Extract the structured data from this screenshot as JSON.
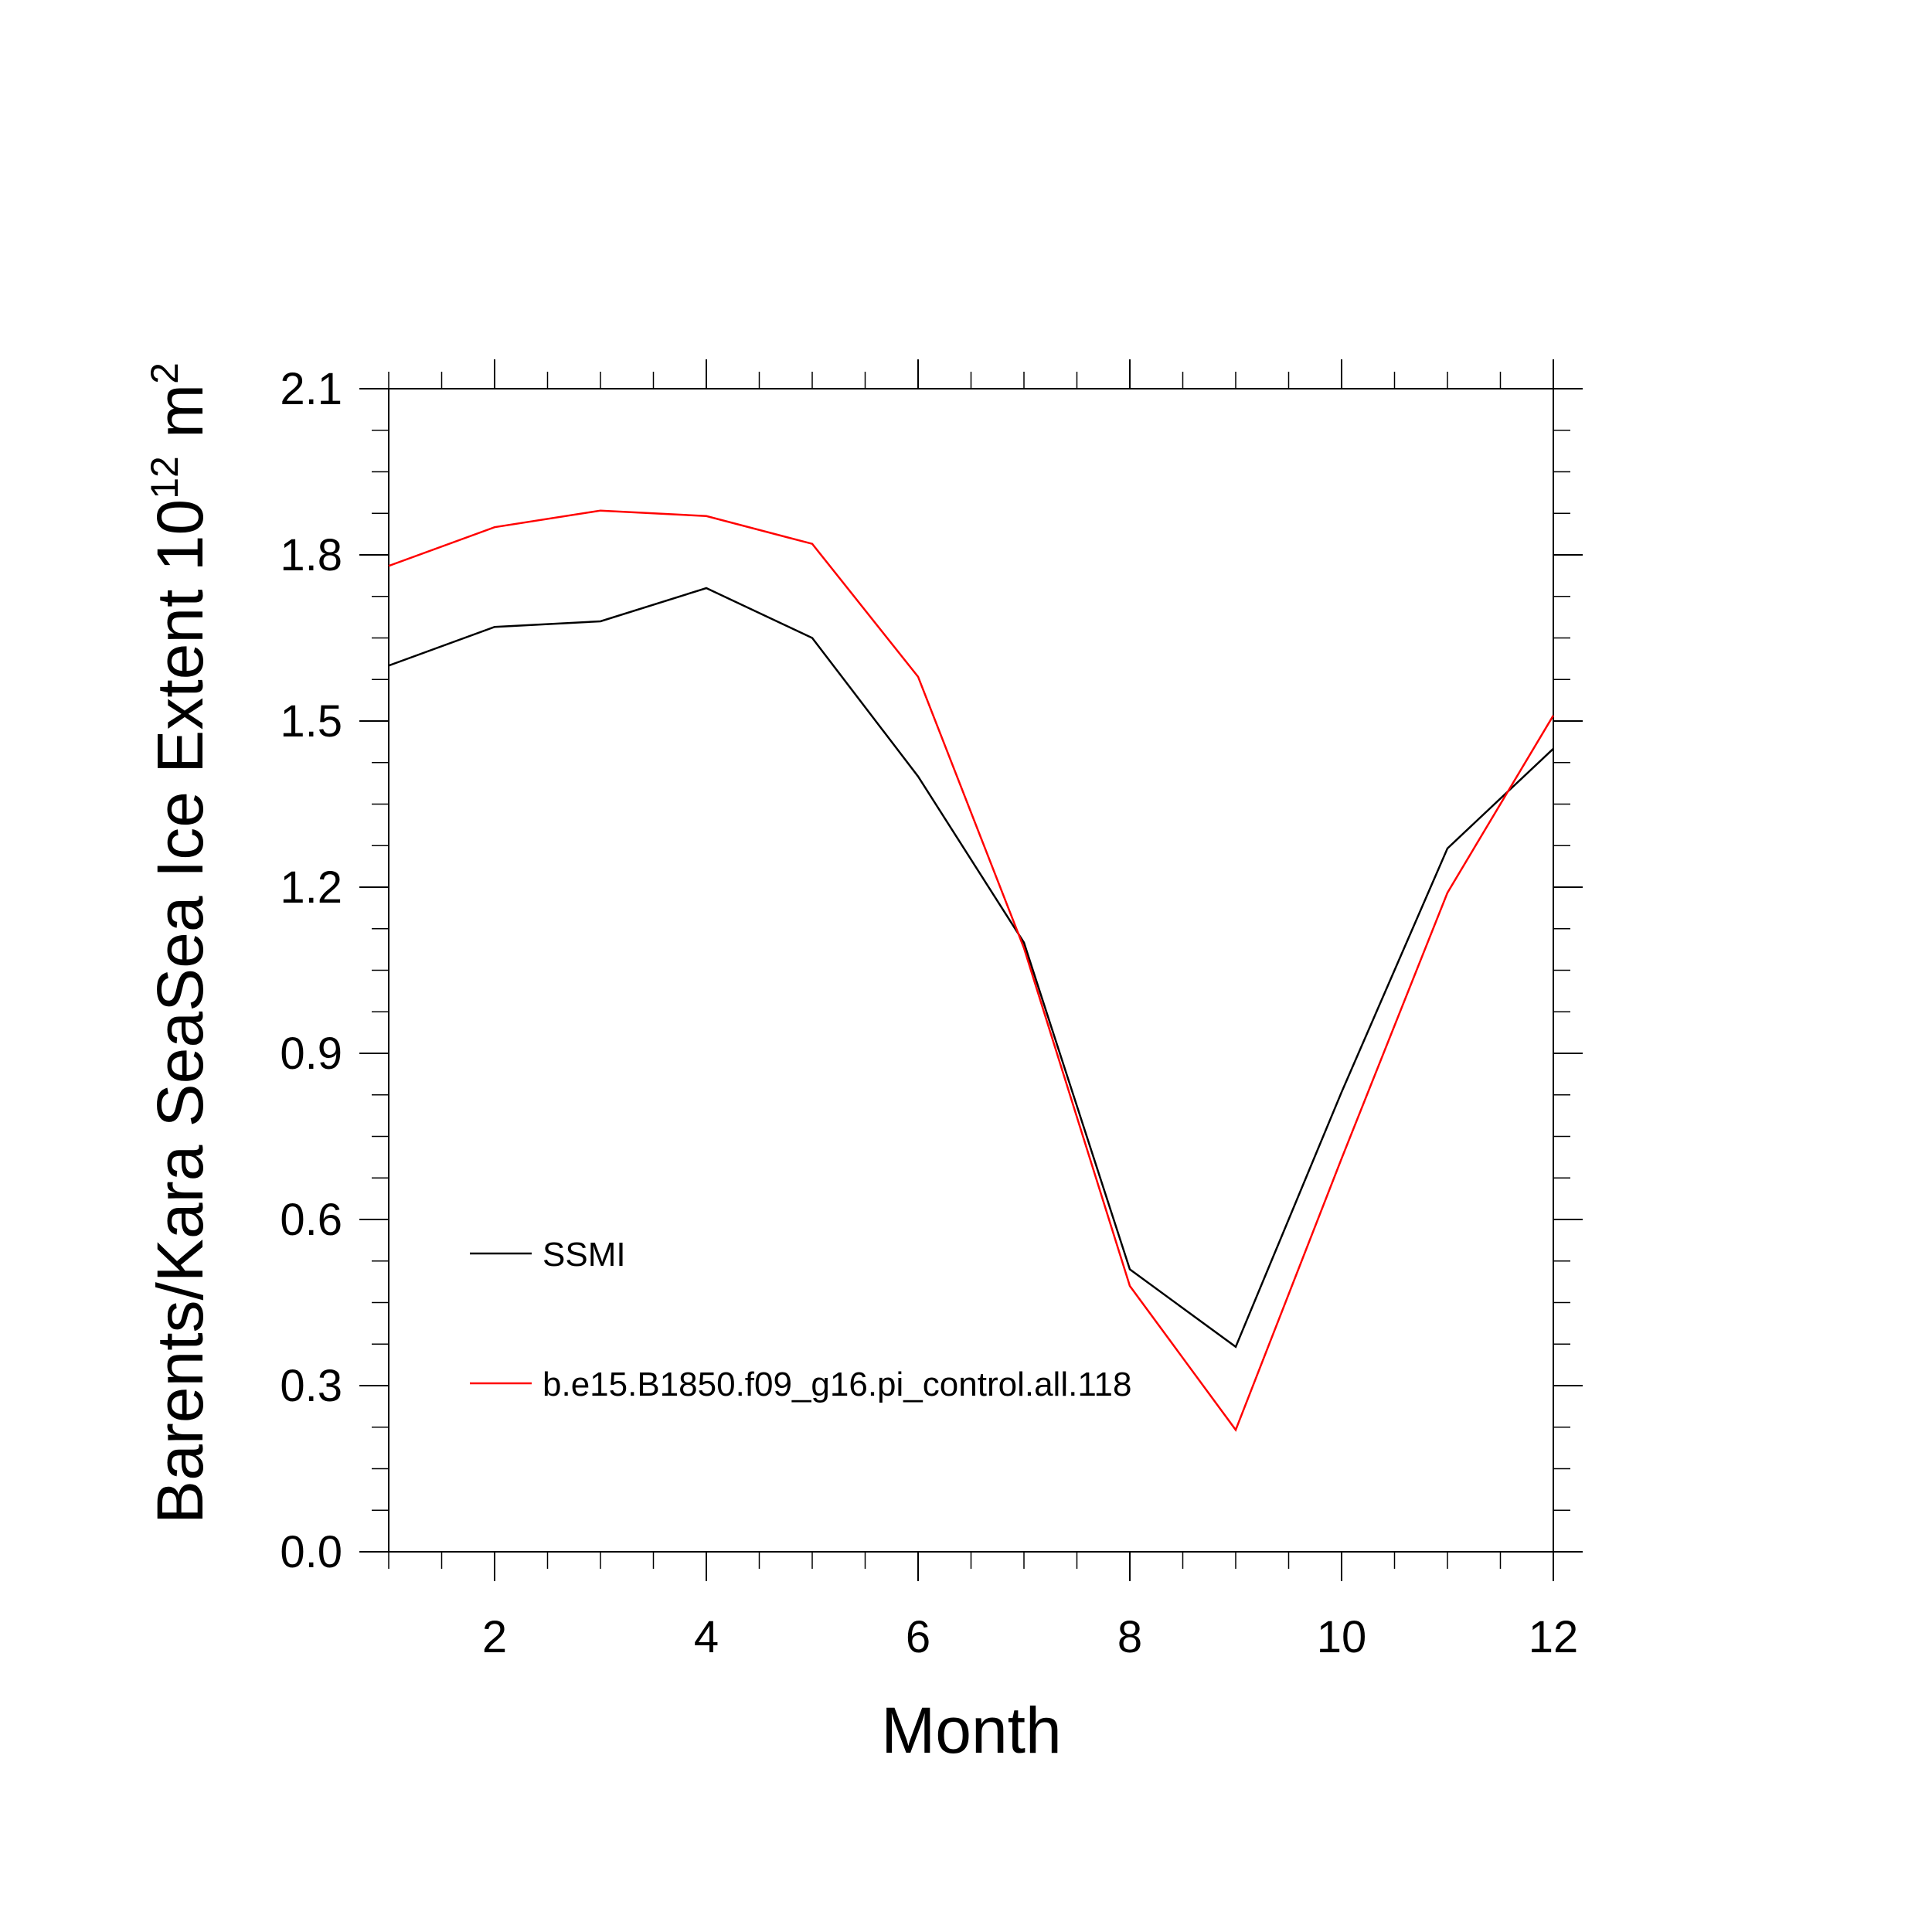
{
  "chart_data": {
    "type": "line",
    "xlabel": "Month",
    "ylabel": {
      "main": "Barents/Kara SeaSea Ice Extent 10",
      "exponent": "12",
      "unit": " m",
      "unit_exponent": "2"
    },
    "xlim": [
      1,
      12
    ],
    "ylim": [
      0.0,
      2.1
    ],
    "x_ticks": [
      2,
      4,
      6,
      8,
      10,
      12
    ],
    "x_tick_labels": [
      "2",
      "4",
      "6",
      "8",
      "10",
      "12"
    ],
    "y_ticks": [
      0.0,
      0.3,
      0.6,
      0.9,
      1.2,
      1.5,
      1.8,
      2.1
    ],
    "y_tick_labels": [
      "0.0",
      "0.3",
      "0.6",
      "0.9",
      "1.2",
      "1.5",
      "1.8",
      "2.1"
    ],
    "x": [
      1,
      2,
      3,
      4,
      5,
      6,
      7,
      8,
      9,
      10,
      11,
      12
    ],
    "series": [
      {
        "name": "SSMI",
        "color": "#000000",
        "values": [
          1.6,
          1.67,
          1.68,
          1.74,
          1.65,
          1.4,
          1.1,
          0.51,
          0.37,
          0.83,
          1.27,
          1.45
        ]
      },
      {
        "name": "b.e15.B1850.f09_g16.pi_control.all.118",
        "color": "#ff0000",
        "values": [
          1.78,
          1.85,
          1.88,
          1.87,
          1.82,
          1.58,
          1.09,
          0.48,
          0.22,
          0.71,
          1.19,
          1.51
        ]
      }
    ],
    "legend_position": "lower-left",
    "grid": false
  }
}
